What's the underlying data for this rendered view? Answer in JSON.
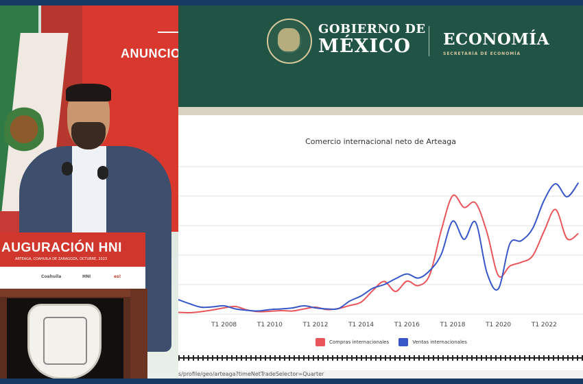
{
  "photo": {
    "wall_text": "ANUNCIO I",
    "banner_title": "AUGURACIÓN HNI",
    "banner_subtitle": "ARTEAGA, COAHUILA DE ZARAGOZA, OCTUBRE, 2023",
    "logos": [
      "Coahuila",
      "HNI",
      "es!"
    ]
  },
  "header": {
    "gov_line1": "GOBIERNO DE",
    "gov_line2": "MÉXICO",
    "dept_title": "ECONOMÍA",
    "dept_subtitle": "SECRETARÍA DE ECONOMÍA",
    "emblem_icon": "mexico-coat-of-arms-icon",
    "colors": {
      "header_bg": "#225446",
      "gold": "#d6c9a0"
    }
  },
  "chart_data": {
    "type": "line",
    "title": "Comercio internacional neto de Arteaga",
    "xlabel": "",
    "ylabel": "",
    "x_ticks": [
      "T1 2008",
      "T1 2010",
      "T1 2012",
      "T1 2014",
      "T1 2016",
      "T1 2018",
      "T1 2020",
      "T1 2022"
    ],
    "y_axis_labels_visible": false,
    "grid": "horizontal",
    "legend_position": "bottom",
    "x": [
      2006.0,
      2006.5,
      2007.0,
      2007.5,
      2008.0,
      2008.5,
      2009.0,
      2009.5,
      2010.0,
      2010.5,
      2011.0,
      2011.5,
      2012.0,
      2012.5,
      2013.0,
      2013.5,
      2014.0,
      2014.5,
      2015.0,
      2015.5,
      2016.0,
      2016.5,
      2017.0,
      2017.5,
      2018.0,
      2018.5,
      2019.0,
      2019.5,
      2020.0,
      2020.5,
      2021.0,
      2021.5,
      2022.0,
      2022.5,
      2023.0,
      2023.5
    ],
    "series": [
      {
        "name": "Compras internacionales",
        "color": "#e8555a",
        "values": [
          0.5,
          0.4,
          0.7,
          1.2,
          1.8,
          2.2,
          1.2,
          0.7,
          0.8,
          1.0,
          0.9,
          1.5,
          2.0,
          1.3,
          1.6,
          2.5,
          3.5,
          6.8,
          9.5,
          6.6,
          9.6,
          8.3,
          11.5,
          24.4,
          34.5,
          31.1,
          32.4,
          23.8,
          11.2,
          14.0,
          15.1,
          17.0,
          24.2,
          30.5,
          22.0,
          23.5
        ]
      },
      {
        "name": "Ventas internacionales",
        "color": "#3757c9",
        "values": [
          4.2,
          3.0,
          2.0,
          2.1,
          2.4,
          1.5,
          1.1,
          0.9,
          1.3,
          1.5,
          1.8,
          2.4,
          1.8,
          1.5,
          1.6,
          3.8,
          5.3,
          7.5,
          8.6,
          10.3,
          11.7,
          10.5,
          12.7,
          17.4,
          27.1,
          21.8,
          26.8,
          12.0,
          7.4,
          20.5,
          21.4,
          25.0,
          33.2,
          38.0,
          34.2,
          38.3
        ]
      }
    ],
    "legend": [
      "Compras internacionales",
      "Ventas internacionales"
    ]
  },
  "url": "s/profile/geo/arteaga?timeNetTradeSelector=Quarter"
}
